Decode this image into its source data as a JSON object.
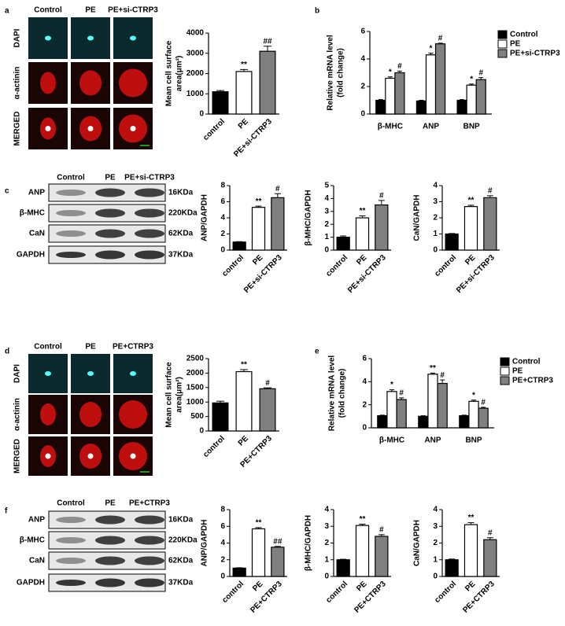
{
  "panel_letters": [
    "a",
    "b",
    "c",
    "d",
    "e",
    "f"
  ],
  "images": [
    {
      "columns": [
        "Control",
        "PE",
        "PE+si-CTRP3"
      ],
      "rows": [
        "DAPI",
        "α-actinin",
        "MERGED"
      ]
    },
    {
      "columns": [
        "Control",
        "PE",
        "PE+CTRP3"
      ],
      "rows": [
        "DAPI",
        "α-actinin",
        "MERGED"
      ]
    }
  ],
  "blots": [
    {
      "columns": [
        "Control",
        "PE",
        "PE+si-CTRP3"
      ],
      "rows": [
        "ANP",
        "β-MHC",
        "CaN",
        "GAPDH"
      ],
      "sizes": [
        "16KDa",
        "220KDa",
        "62KDa",
        "37KDa"
      ]
    },
    {
      "columns": [
        "Control",
        "PE",
        "PE+CTRP3"
      ],
      "rows": [
        "ANP",
        "β-MHC",
        "CaN",
        "GAPDH"
      ],
      "sizes": [
        "16KDa",
        "220KDa",
        "62KDa",
        "37KDa"
      ]
    }
  ],
  "chart_data": [
    {
      "type": "bar",
      "y_label": [
        "Mean cell surface",
        "area(μm²)"
      ],
      "categories": [
        "control",
        "PE",
        "PE+si-CTRP3"
      ],
      "values": [
        1100,
        2100,
        3100
      ],
      "errors": [
        60,
        100,
        250
      ],
      "colors": [
        "#000000",
        "#ffffff",
        "#808080"
      ],
      "annotations": [
        null,
        "**",
        "##"
      ],
      "ylim": [
        0,
        4000
      ],
      "yticks": [
        0,
        1000,
        2000,
        3000,
        4000
      ]
    },
    {
      "type": "grouped_bar",
      "y_label": [
        "Relative mRNA level",
        "(fold change)"
      ],
      "categories": [
        "β-MHC",
        "ANP",
        "BNP"
      ],
      "series": [
        {
          "name": "Control",
          "color": "#000000",
          "values": [
            1.0,
            0.95,
            1.0
          ],
          "errors": [
            0.05,
            0.05,
            0.05
          ],
          "annotations": [
            null,
            null,
            null
          ]
        },
        {
          "name": "PE",
          "color": "#ffffff",
          "values": [
            2.6,
            4.3,
            2.1
          ],
          "errors": [
            0.1,
            0.12,
            0.08
          ],
          "annotations": [
            "*",
            "*",
            "*"
          ]
        },
        {
          "name": "PE+si-CTRP3",
          "color": "#808080",
          "values": [
            3.0,
            5.1,
            2.5
          ],
          "errors": [
            0.12,
            0.05,
            0.15
          ],
          "annotations": [
            "#",
            "#",
            "#"
          ]
        }
      ],
      "ylim": [
        0,
        6
      ],
      "yticks": [
        0,
        2,
        4,
        6
      ],
      "legend": "upper right"
    },
    {
      "type": "bar",
      "y_label": [
        "ANP/GAPDH"
      ],
      "categories": [
        "control",
        "PE",
        "PE+si-CTRP3"
      ],
      "values": [
        1,
        5.3,
        6.5
      ],
      "errors": [
        0.05,
        0.15,
        0.5
      ],
      "colors": [
        "#000000",
        "#ffffff",
        "#808080"
      ],
      "annotations": [
        null,
        "**",
        "#"
      ],
      "ylim": [
        0,
        8
      ],
      "yticks": [
        0,
        2,
        4,
        6,
        8
      ]
    },
    {
      "type": "bar",
      "y_label": [
        "β-MHC/GAPDH"
      ],
      "categories": [
        "control",
        "PE",
        "PE+si-CTRP3"
      ],
      "values": [
        1,
        2.5,
        3.5
      ],
      "errors": [
        0.1,
        0.15,
        0.35
      ],
      "colors": [
        "#000000",
        "#ffffff",
        "#808080"
      ],
      "annotations": [
        null,
        "**",
        "#"
      ],
      "ylim": [
        0,
        5
      ],
      "yticks": [
        0,
        1,
        2,
        3,
        4,
        5
      ]
    },
    {
      "type": "bar",
      "y_label": [
        "CaN/GAPDH"
      ],
      "categories": [
        "control",
        "PE",
        "PE+si-CTRP3"
      ],
      "values": [
        1,
        2.7,
        3.25
      ],
      "errors": [
        0.03,
        0.08,
        0.12
      ],
      "colors": [
        "#000000",
        "#ffffff",
        "#808080"
      ],
      "annotations": [
        null,
        "**",
        "#"
      ],
      "ylim": [
        0,
        4
      ],
      "yticks": [
        0,
        1,
        2,
        3,
        4
      ]
    },
    {
      "type": "bar",
      "y_label": [
        "Mean cell surface",
        "area(μm²)"
      ],
      "categories": [
        "control",
        "PE",
        "PE+CTRP3"
      ],
      "values": [
        970,
        2050,
        1460
      ],
      "errors": [
        60,
        70,
        30
      ],
      "colors": [
        "#000000",
        "#ffffff",
        "#808080"
      ],
      "annotations": [
        null,
        "**",
        "#"
      ],
      "ylim": [
        0,
        2500
      ],
      "yticks": [
        0,
        500,
        1000,
        1500,
        2000,
        2500
      ]
    },
    {
      "type": "grouped_bar",
      "y_label": [
        "Relative mRNA level",
        "(fold change)"
      ],
      "categories": [
        "β-MHC",
        "ANP",
        "BNP"
      ],
      "series": [
        {
          "name": "Control",
          "color": "#000000",
          "values": [
            1.05,
            1.0,
            1.05
          ],
          "errors": [
            0.05,
            0.05,
            0.05
          ],
          "annotations": [
            null,
            null,
            null
          ]
        },
        {
          "name": "PE",
          "color": "#ffffff",
          "values": [
            3.15,
            4.65,
            2.3
          ],
          "errors": [
            0.15,
            0.1,
            0.1
          ],
          "annotations": [
            "*",
            "**",
            "*"
          ]
        },
        {
          "name": "PE+CTRP3",
          "color": "#808080",
          "values": [
            2.45,
            3.85,
            1.7
          ],
          "errors": [
            0.15,
            0.3,
            0.08
          ],
          "annotations": [
            "#",
            "#",
            "#"
          ]
        }
      ],
      "ylim": [
        0,
        6
      ],
      "yticks": [
        0,
        2,
        4,
        6
      ],
      "legend": "upper right"
    },
    {
      "type": "bar",
      "y_label": [
        "ANP/GAPDH"
      ],
      "categories": [
        "control",
        "PE",
        "PE+CTRP3"
      ],
      "values": [
        1,
        5.7,
        3.5
      ],
      "errors": [
        0.05,
        0.15,
        0.1
      ],
      "colors": [
        "#000000",
        "#ffffff",
        "#808080"
      ],
      "annotations": [
        null,
        "**",
        "##"
      ],
      "ylim": [
        0,
        8
      ],
      "yticks": [
        0,
        2,
        4,
        6,
        8
      ]
    },
    {
      "type": "bar",
      "y_label": [
        "β-MHC/GAPDH"
      ],
      "categories": [
        "control",
        "PE",
        "PE+CTRP3"
      ],
      "values": [
        1,
        3.05,
        2.4
      ],
      "errors": [
        0.03,
        0.08,
        0.1
      ],
      "colors": [
        "#000000",
        "#ffffff",
        "#808080"
      ],
      "annotations": [
        null,
        "**",
        "#"
      ],
      "ylim": [
        0,
        4
      ],
      "yticks": [
        0,
        1,
        2,
        3,
        4
      ]
    },
    {
      "type": "bar",
      "y_label": [
        "CaN/GAPDH"
      ],
      "categories": [
        "control",
        "PE",
        "PE+CTRP3"
      ],
      "values": [
        1,
        3.1,
        2.2
      ],
      "errors": [
        0.04,
        0.12,
        0.12
      ],
      "colors": [
        "#000000",
        "#ffffff",
        "#808080"
      ],
      "annotations": [
        null,
        "**",
        "#"
      ],
      "ylim": [
        0,
        4
      ],
      "yticks": [
        0,
        1,
        2,
        3,
        4
      ]
    }
  ]
}
